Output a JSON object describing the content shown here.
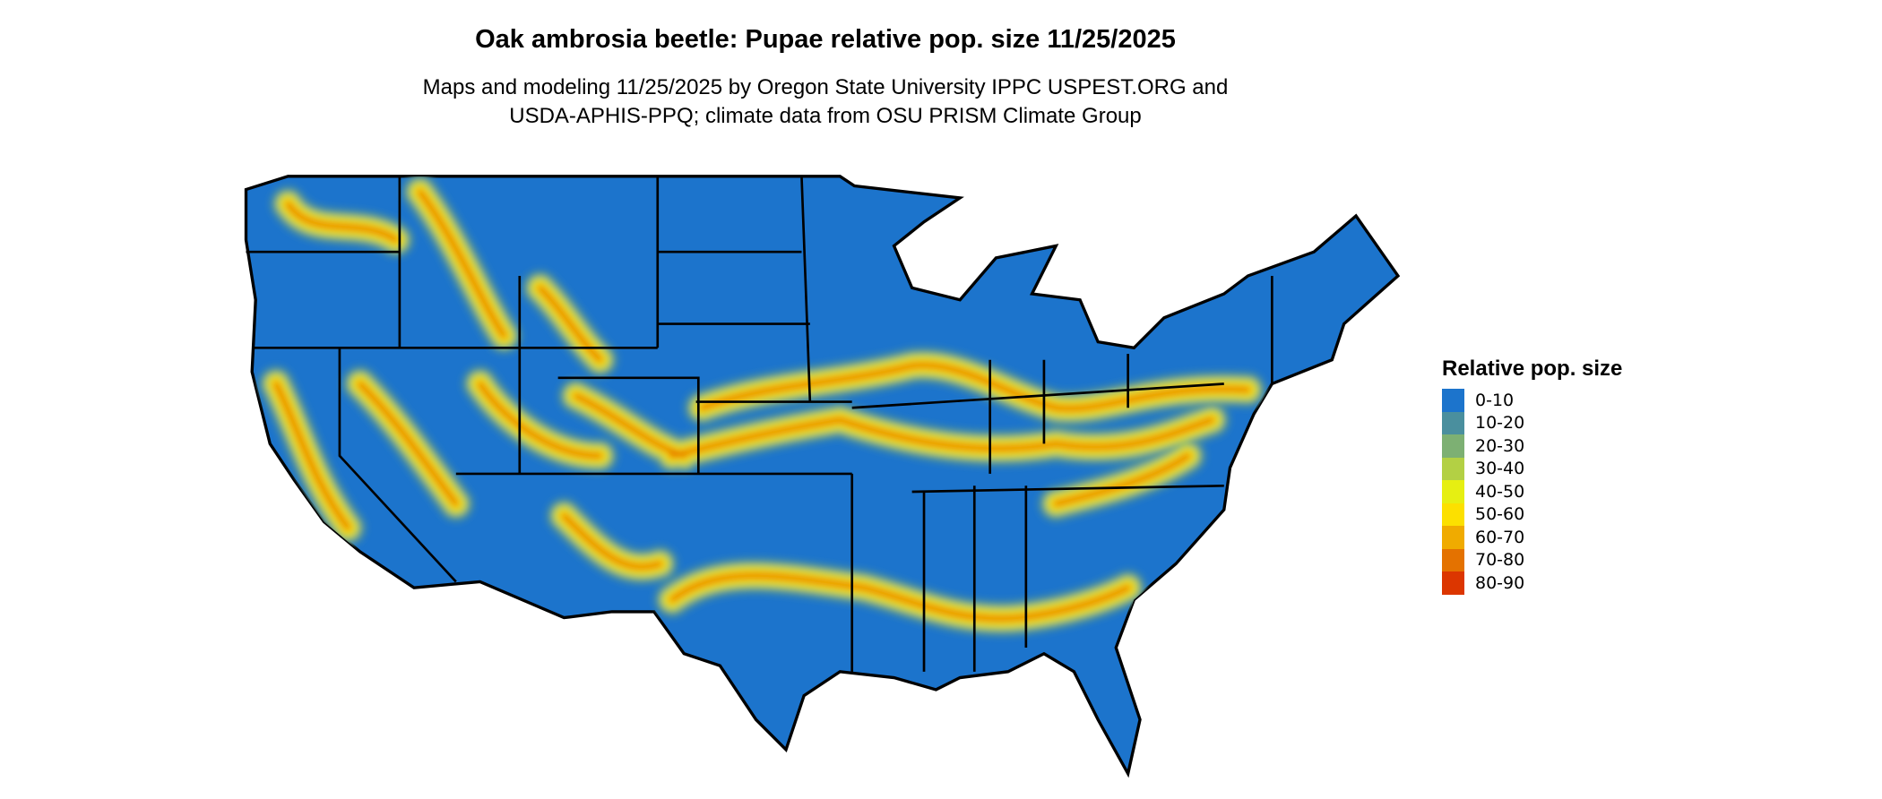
{
  "title": "Oak ambrosia beetle: Pupae relative pop. size 11/25/2025",
  "subtitle_lines": [
    "Maps and modeling 11/25/2025 by Oregon State University IPPC USPEST.ORG and",
    "USDA-APHIS-PPQ; climate data from OSU PRISM Climate Group"
  ],
  "legend": {
    "title": "Relative pop. size",
    "items": [
      {
        "label": "0-10",
        "color": "#1c74cc"
      },
      {
        "label": "10-20",
        "color": "#4a8f9e"
      },
      {
        "label": "20-30",
        "color": "#7db073"
      },
      {
        "label": "30-40",
        "color": "#b3d044"
      },
      {
        "label": "40-50",
        "color": "#e6ef12"
      },
      {
        "label": "50-60",
        "color": "#fce000"
      },
      {
        "label": "60-70",
        "color": "#f0ab00"
      },
      {
        "label": "70-80",
        "color": "#e47200"
      },
      {
        "label": "80-90",
        "color": "#dc3600"
      }
    ]
  }
}
